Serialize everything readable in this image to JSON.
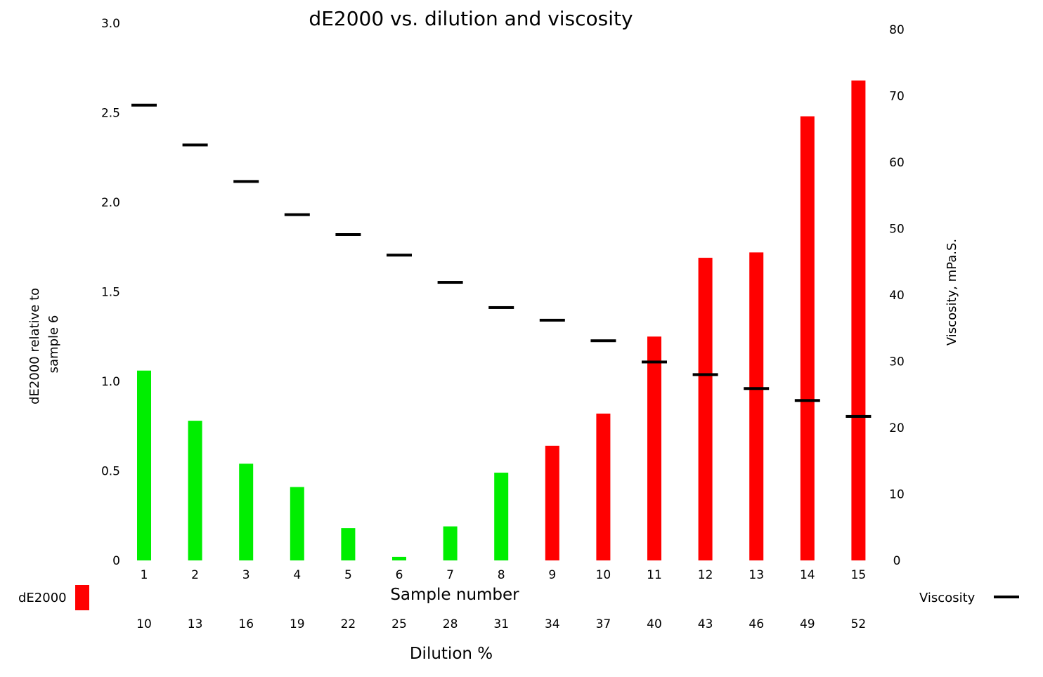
{
  "chart_data": {
    "type": "bar",
    "title": "dE2000 vs. dilution and viscosity",
    "xlabel": "Sample number",
    "xlabel2": "Dilution %",
    "ylabel": "dE2000 relative to sample 6",
    "ylabel2": "Viscosity, mPa.S.",
    "categories": [
      "1",
      "2",
      "3",
      "4",
      "5",
      "6",
      "7",
      "8",
      "9",
      "10",
      "11",
      "12",
      "13",
      "14",
      "15"
    ],
    "dilution": [
      "10",
      "13",
      "16",
      "19",
      "22",
      "25",
      "28",
      "31",
      "34",
      "37",
      "40",
      "43",
      "46",
      "49",
      "52"
    ],
    "y_ticks": [
      "0",
      "0.5",
      "1.0",
      "1.5",
      "2.0",
      "2.5",
      "3.0"
    ],
    "y2_ticks": [
      "0",
      "10",
      "20",
      "30",
      "40",
      "50",
      "60",
      "70",
      "80"
    ],
    "ylim": [
      0,
      3.0
    ],
    "y2lim": [
      0,
      80
    ],
    "series": [
      {
        "name": "dE2000",
        "kind": "bar",
        "values": [
          1.06,
          0.78,
          0.54,
          0.41,
          0.18,
          0.02,
          0.19,
          0.49,
          0.64,
          0.82,
          1.25,
          1.69,
          1.72,
          2.48,
          2.68
        ],
        "colors": [
          "#00ee00",
          "#00ee00",
          "#00ee00",
          "#00ee00",
          "#00ee00",
          "#00ee00",
          "#00ee00",
          "#00ee00",
          "#ff0000",
          "#ff0000",
          "#ff0000",
          "#ff0000",
          "#ff0000",
          "#ff0000",
          "#ff0000"
        ]
      },
      {
        "name": "Viscosity",
        "kind": "marker",
        "values": [
          68.6,
          62.6,
          57.1,
          52.1,
          49.1,
          46.0,
          41.9,
          38.1,
          36.2,
          33.1,
          29.9,
          28.0,
          25.9,
          24.1,
          21.7
        ],
        "color": "#000000"
      }
    ],
    "legend": [
      {
        "label": "dE2000",
        "color": "#ff0000",
        "symbol": "bar",
        "placement": "bottom-left"
      },
      {
        "label": "Viscosity",
        "color": "#000000",
        "symbol": "dash",
        "placement": "bottom-right"
      }
    ],
    "grid": false
  }
}
